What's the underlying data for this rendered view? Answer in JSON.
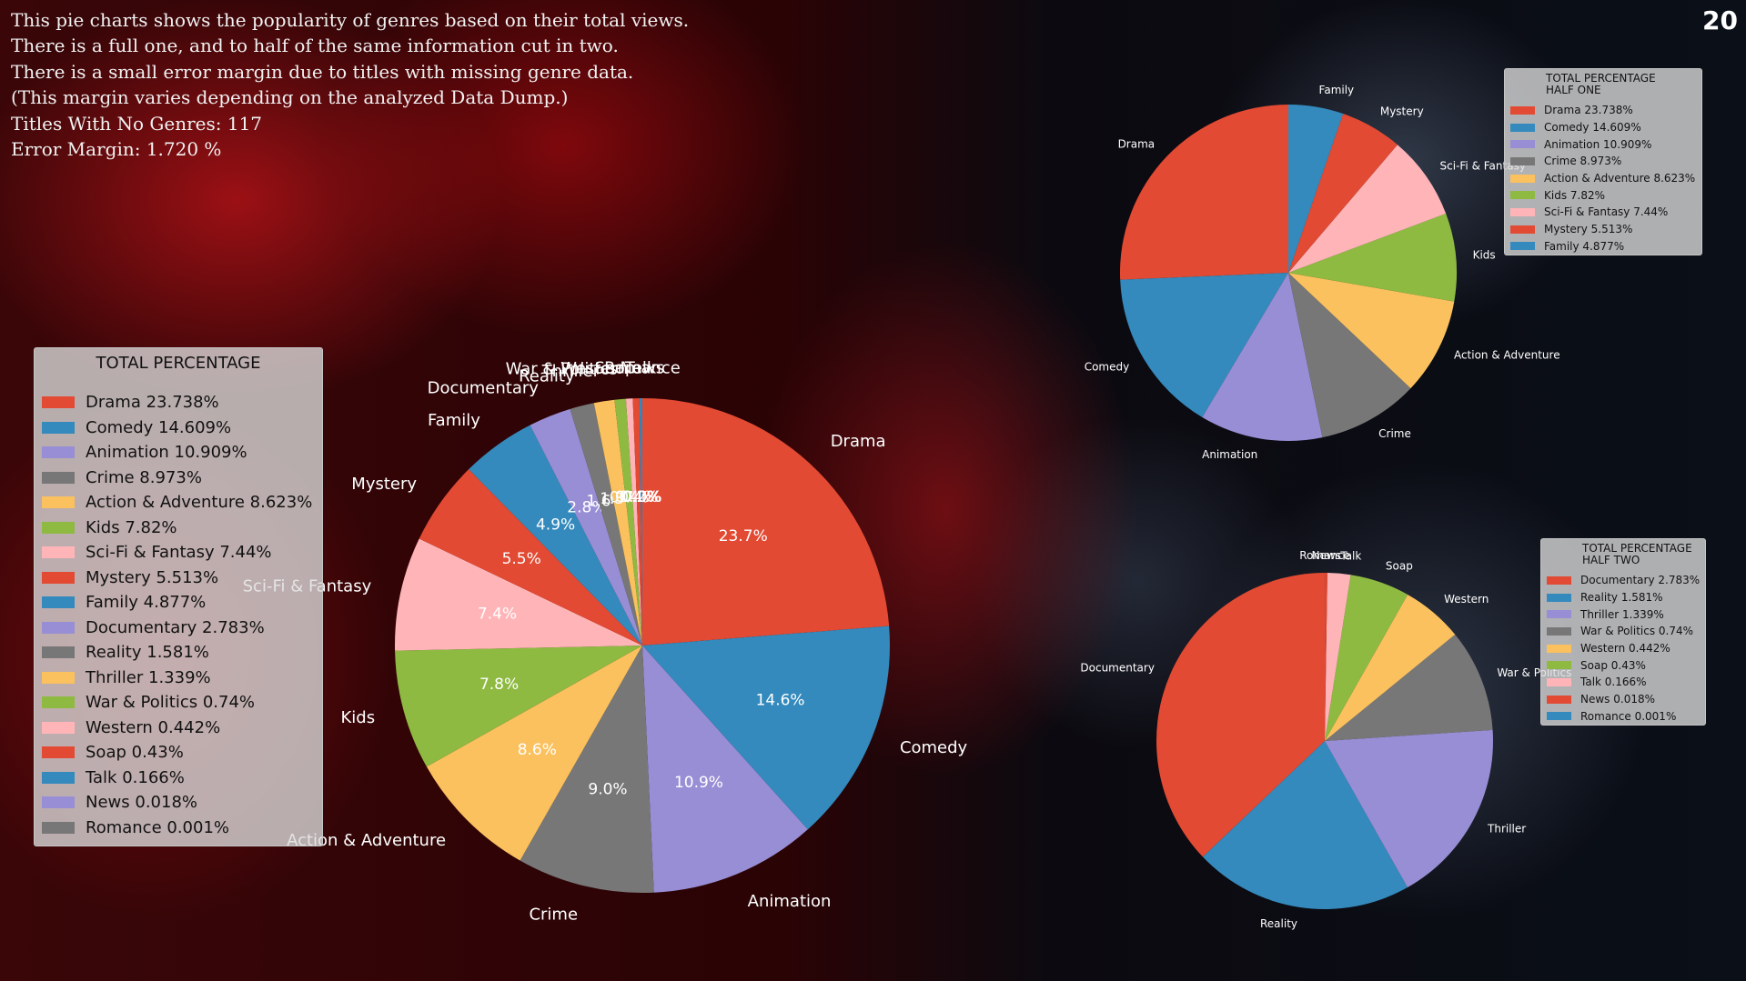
{
  "page_number": "20",
  "description_lines": [
    "This pie charts shows the popularity of genres based on their total views.",
    "There is a full one, and to half of the same information cut in two.",
    "There is a small error margin due to titles with missing genre data.",
    "(This margin varies depending on the analyzed Data Dump.)",
    "Titles With No Genres: 117",
    "Error Margin: 1.720 %"
  ],
  "legends": {
    "main": "TOTAL PERCENTAGE",
    "half_one": [
      "TOTAL PERCENTAGE",
      "HALF ONE"
    ],
    "half_two": [
      "TOTAL PERCENTAGE",
      "HALF TWO"
    ]
  },
  "chart_data": [
    {
      "type": "pie",
      "legend_title": "TOTAL PERCENTAGE",
      "legend_placement": "left",
      "start_angle_deg": 90,
      "direction": "clockwise",
      "labels": [
        "Drama",
        "Comedy",
        "Animation",
        "Crime",
        "Action & Adventure",
        "Kids",
        "Sci-Fi & Fantasy",
        "Mystery",
        "Family",
        "Documentary",
        "Reality",
        "Thriller",
        "War & Politics",
        "Western",
        "Soap",
        "Talk",
        "News",
        "Romance"
      ],
      "values": [
        23.738,
        14.609,
        10.909,
        8.973,
        8.623,
        7.82,
        7.44,
        5.513,
        4.877,
        2.783,
        1.581,
        1.339,
        0.74,
        0.442,
        0.43,
        0.166,
        0.018,
        0.001
      ],
      "legend_entries": [
        "Drama 23.738%",
        "Comedy 14.609%",
        "Animation 10.909%",
        "Crime 8.973%",
        "Action & Adventure 8.623%",
        "Kids 7.82%",
        "Sci-Fi & Fantasy 7.44%",
        "Mystery 5.513%",
        "Family 4.877%",
        "Documentary 2.783%",
        "Reality 1.581%",
        "Thriller 1.339%",
        "War & Politics 0.74%",
        "Western 0.442%",
        "Soap 0.43%",
        "Talk 0.166%",
        "News 0.018%",
        "Romance 0.001%"
      ],
      "autopct_labels": [
        "23.7%",
        "14.6%",
        "10.9%",
        "9.0%",
        "8.6%",
        "7.8%",
        "7.4%",
        "5.5%",
        "4.9%",
        "2.8%",
        "1.6%",
        "1.3%",
        "0.7%",
        "0.4%",
        "0.4%",
        "0.2%",
        "0.0%",
        "0.0%"
      ],
      "colors": [
        "#e24a33",
        "#348abd",
        "#988ed5",
        "#777777",
        "#fbc15e",
        "#8eba42",
        "#ffb5b8",
        "#e24a33",
        "#348abd",
        "#988ed5",
        "#777777",
        "#fbc15e",
        "#8eba42",
        "#ffb5b8",
        "#e24a33",
        "#348abd",
        "#988ed5",
        "#777777"
      ]
    },
    {
      "type": "pie",
      "legend_title": "TOTAL PERCENTAGE HALF ONE",
      "legend_placement": "top-right",
      "start_angle_deg": 90,
      "direction": "counterclockwise",
      "labels": [
        "Drama",
        "Comedy",
        "Animation",
        "Crime",
        "Action & Adventure",
        "Kids",
        "Sci-Fi & Fantasy",
        "Mystery",
        "Family"
      ],
      "values": [
        23.738,
        14.609,
        10.909,
        8.973,
        8.623,
        7.82,
        7.44,
        5.513,
        4.877
      ],
      "legend_entries": [
        "Drama 23.738%",
        "Comedy 14.609%",
        "Animation 10.909%",
        "Crime 8.973%",
        "Action & Adventure 8.623%",
        "Kids 7.82%",
        "Sci-Fi & Fantasy 7.44%",
        "Mystery 5.513%",
        "Family 4.877%"
      ],
      "colors": [
        "#e24a33",
        "#348abd",
        "#988ed5",
        "#777777",
        "#fbc15e",
        "#8eba42",
        "#ffb5b8",
        "#e24a33",
        "#348abd"
      ]
    },
    {
      "type": "pie",
      "legend_title": "TOTAL PERCENTAGE HALF TWO",
      "legend_placement": "right",
      "start_angle_deg": 90,
      "direction": "counterclockwise",
      "labels": [
        "Documentary",
        "Reality",
        "Thriller",
        "War & Politics",
        "Western",
        "Soap",
        "Talk",
        "News",
        "Romance"
      ],
      "values": [
        2.783,
        1.581,
        1.339,
        0.74,
        0.442,
        0.43,
        0.166,
        0.018,
        0.001
      ],
      "legend_entries": [
        "Documentary 2.783%",
        "Reality 1.581%",
        "Thriller 1.339%",
        "War & Politics 0.74%",
        "Western 0.442%",
        "Soap 0.43%",
        "Talk 0.166%",
        "News 0.018%",
        "Romance 0.001%"
      ],
      "colors": [
        "#e24a33",
        "#348abd",
        "#988ed5",
        "#777777",
        "#fbc15e",
        "#8eba42",
        "#ffb5b8",
        "#e24a33",
        "#348abd"
      ]
    }
  ]
}
